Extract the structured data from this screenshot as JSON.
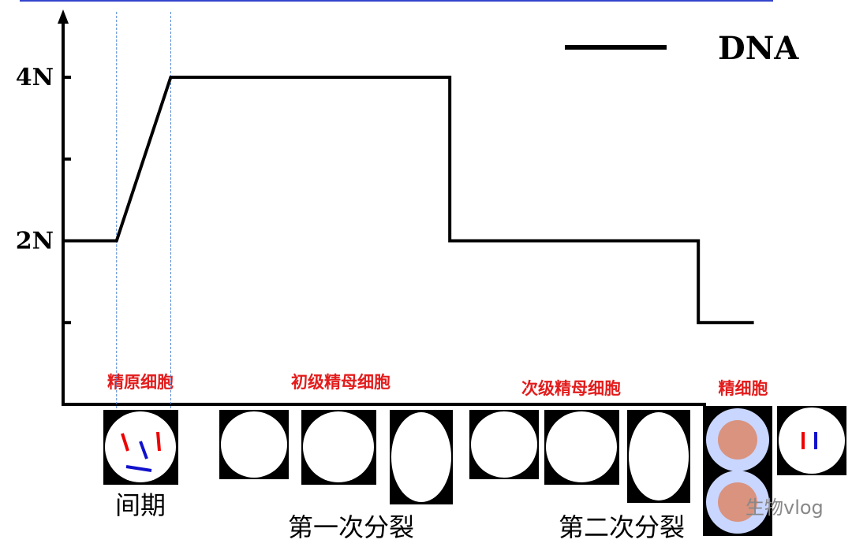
{
  "chart_data": {
    "type": "line",
    "legend": "DNA",
    "x": [
      0,
      7.7,
      15.5,
      55.7,
      55.7,
      91.5,
      91.5,
      99.5
    ],
    "series": [
      {
        "name": "DNA",
        "color": "#000000",
        "values": [
          2,
          2,
          4,
          4,
          2,
          2,
          1,
          1
        ]
      }
    ],
    "xlim": [
      0,
      100
    ],
    "ylim": [
      0,
      4.8
    ],
    "yticks": [
      {
        "value": 2,
        "label": "2N"
      },
      {
        "value": 4,
        "label": "4N"
      }
    ],
    "yminorticks": [
      1,
      3
    ],
    "stage_labels": [
      "精原细胞",
      "初级精母细胞",
      "次级精母细胞",
      "精细胞"
    ],
    "phase_labels": [
      "间期",
      "第一次分裂",
      "第二次分裂"
    ],
    "watermark": "生物vlog"
  }
}
